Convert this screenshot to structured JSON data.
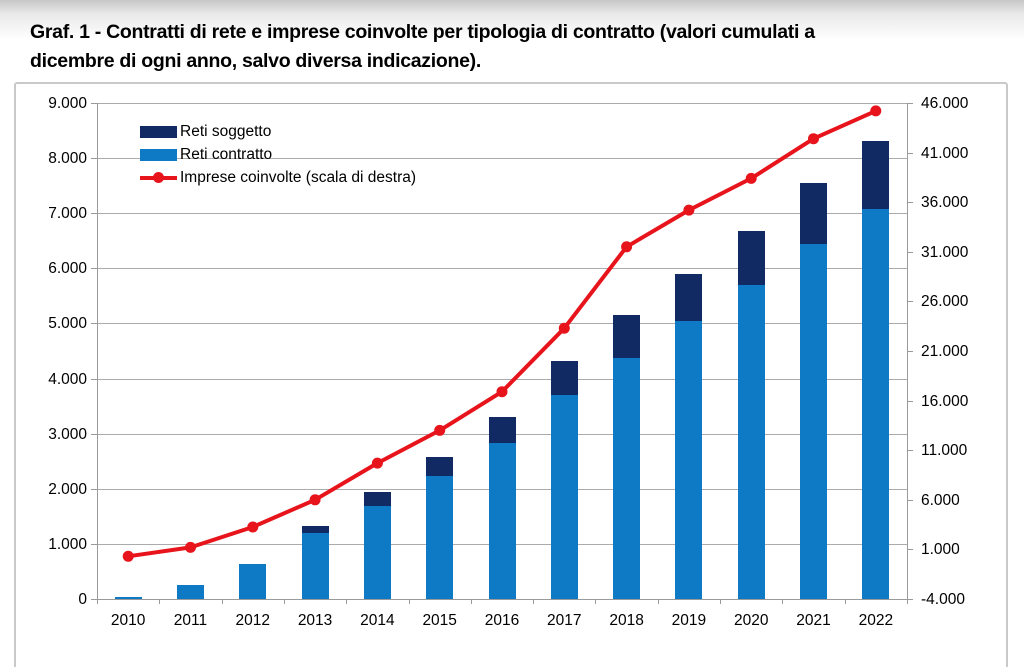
{
  "page": {
    "title_line1": "Graf. 1 - Contratti di rete e imprese coinvolte per tipologia di contratto (valori cumulati a",
    "title_line2": "dicembre di ogni anno, salvo diversa indicazione)."
  },
  "chart_data": {
    "type": "combo-stacked-bar-line",
    "title": "Graf. 1 - Contratti di rete e imprese coinvolte per tipologia di contratto (valori cumulati a dicembre di ogni anno, salvo diversa indicazione).",
    "categories": [
      "2010",
      "2011",
      "2012",
      "2013",
      "2014",
      "2015",
      "2016",
      "2017",
      "2018",
      "2019",
      "2020",
      "2021",
      "2022"
    ],
    "series": [
      {
        "name": "Reti soggetto",
        "type": "bar",
        "axis": "left",
        "color": "#122A63",
        "values": [
          0,
          0,
          0,
          140,
          250,
          350,
          480,
          620,
          790,
          850,
          980,
          1110,
          1240
        ]
      },
      {
        "name": "Reti contratto",
        "type": "bar",
        "axis": "left",
        "color": "#0E7AC6",
        "values": [
          30,
          255,
          640,
          1190,
          1690,
          2230,
          2830,
          3700,
          4370,
          5050,
          5690,
          6440,
          7070
        ]
      },
      {
        "name": "Imprese coinvolte (scala di destra)",
        "type": "line",
        "axis": "right",
        "color": "#E8141C",
        "values": [
          300,
          1200,
          3260,
          6000,
          9700,
          13000,
          16900,
          23300,
          31500,
          35200,
          38400,
          42400,
          45200
        ]
      }
    ],
    "stacked_totals": [
      30,
      255,
      640,
      1330,
      1940,
      2580,
      3310,
      4320,
      5160,
      5900,
      6670,
      7550,
      8310
    ],
    "left_axis": {
      "min": 0,
      "max": 9000,
      "step": 1000,
      "labels": [
        "0",
        "1.000",
        "2.000",
        "3.000",
        "4.000",
        "5.000",
        "6.000",
        "7.000",
        "8.000",
        "9.000"
      ]
    },
    "right_axis": {
      "min": -4000,
      "max": 46000,
      "step": 5000,
      "labels": [
        "-4.000",
        "1.000",
        "6.000",
        "11.000",
        "16.000",
        "21.000",
        "26.000",
        "31.000",
        "36.000",
        "41.000",
        "46.000"
      ]
    },
    "legend_position": "top-left-inside",
    "grid": "horizontal",
    "colors": {
      "gridline": "#ababab",
      "axis": "#9a9a9a",
      "figure_border": "#c9c9c9",
      "text": "#000000"
    }
  }
}
